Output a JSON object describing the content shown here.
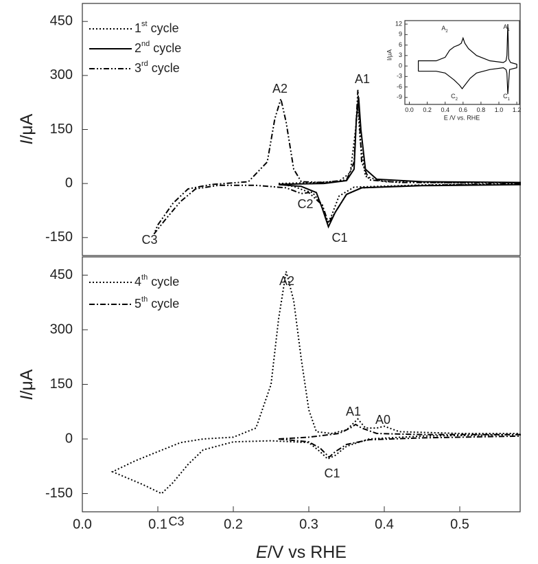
{
  "chart_data": [
    {
      "type": "line",
      "xlim": [
        0,
        0.58
      ],
      "ylim": [
        -200,
        500
      ],
      "yticks": [
        -150,
        0,
        150,
        300,
        450
      ],
      "ylabel": "I/μA",
      "legend": "upper left",
      "annotations": [
        "A2",
        "A1",
        "C2",
        "C1",
        "C3"
      ],
      "series": [
        {
          "name": "1st cycle",
          "color": "#000000",
          "style": "dotted",
          "x": [
            0.26,
            0.3,
            0.34,
            0.355,
            0.362,
            0.365,
            0.368,
            0.375,
            0.4,
            0.48,
            0.58,
            0.58,
            0.45,
            0.36,
            0.34,
            0.33,
            0.325,
            0.318,
            0.305,
            0.295,
            0.28,
            0.26
          ],
          "values": [
            0,
            2,
            6,
            30,
            150,
            220,
            120,
            20,
            5,
            2,
            2,
            -2,
            -4,
            -10,
            -35,
            -90,
            -110,
            -60,
            -25,
            -20,
            -8,
            -2
          ]
        },
        {
          "name": "2nd cycle",
          "color": "#000000",
          "style": "solid",
          "x": [
            0.26,
            0.32,
            0.35,
            0.36,
            0.363,
            0.366,
            0.369,
            0.375,
            0.39,
            0.45,
            0.58,
            0.58,
            0.45,
            0.37,
            0.35,
            0.335,
            0.326,
            0.318,
            0.31,
            0.29,
            0.26
          ],
          "values": [
            -2,
            0,
            8,
            40,
            180,
            240,
            150,
            40,
            12,
            5,
            3,
            -3,
            -6,
            -12,
            -30,
            -80,
            -120,
            -70,
            -25,
            -8,
            -3
          ]
        },
        {
          "name": "3rd cycle",
          "color": "#000000",
          "style": "dashdotdot",
          "x": [
            0.58,
            0.45,
            0.37,
            0.35,
            0.335,
            0.326,
            0.318,
            0.3,
            0.29,
            0.27,
            0.23,
            0.18,
            0.15,
            0.13,
            0.11,
            0.095,
            0.1,
            0.12,
            0.14,
            0.17,
            0.22,
            0.245,
            0.255,
            0.263,
            0.27,
            0.28,
            0.29,
            0.32,
            0.35,
            0.36,
            0.365,
            0.37,
            0.38,
            0.42,
            0.58
          ],
          "values": [
            0,
            -5,
            -12,
            -30,
            -80,
            -110,
            -60,
            -25,
            -28,
            -12,
            -5,
            -5,
            -15,
            -50,
            -100,
            -140,
            -115,
            -55,
            -15,
            -3,
            5,
            60,
            180,
            235,
            170,
            40,
            5,
            3,
            10,
            60,
            260,
            60,
            10,
            3,
            2
          ]
        }
      ]
    },
    {
      "type": "line",
      "xlim": [
        0,
        0.58
      ],
      "ylim": [
        -200,
        500
      ],
      "yticks": [
        -150,
        0,
        150,
        300,
        450
      ],
      "xticks": [
        {
          "value": 0,
          "label": "0.0"
        },
        0.1,
        0.2,
        0.3,
        0.4,
        0.5
      ],
      "ylabel": "I/μA",
      "xlabel": "E/V vs RHE",
      "legend": "upper left",
      "annotations": [
        "A2",
        "A1",
        "A0",
        "C1",
        "C3"
      ],
      "series": [
        {
          "name": "4th cycle",
          "color": "#000000",
          "style": "dotted",
          "x": [
            0.58,
            0.45,
            0.38,
            0.35,
            0.335,
            0.325,
            0.315,
            0.3,
            0.25,
            0.2,
            0.16,
            0.14,
            0.12,
            0.105,
            0.08,
            0.04,
            0.07,
            0.1,
            0.13,
            0.16,
            0.2,
            0.23,
            0.25,
            0.26,
            0.27,
            0.28,
            0.29,
            0.3,
            0.31,
            0.33,
            0.35,
            0.365,
            0.375,
            0.39,
            0.4,
            0.42,
            0.5,
            0.58
          ],
          "values": [
            12,
            8,
            0,
            -20,
            -45,
            -55,
            -35,
            -10,
            -5,
            -8,
            -30,
            -70,
            -120,
            -150,
            -125,
            -90,
            -60,
            -35,
            -10,
            0,
            5,
            30,
            150,
            330,
            460,
            380,
            220,
            80,
            20,
            15,
            25,
            55,
            30,
            30,
            35,
            20,
            15,
            15
          ]
        },
        {
          "name": "5th cycle",
          "color": "#000000",
          "style": "dashdot",
          "x": [
            0.26,
            0.3,
            0.34,
            0.355,
            0.362,
            0.37,
            0.39,
            0.45,
            0.58,
            0.58,
            0.45,
            0.38,
            0.35,
            0.335,
            0.327,
            0.315,
            0.3,
            0.26
          ],
          "values": [
            0,
            5,
            15,
            30,
            40,
            30,
            15,
            12,
            12,
            8,
            3,
            -2,
            -15,
            -35,
            -50,
            -25,
            -8,
            0
          ]
        }
      ]
    },
    {
      "type": "line",
      "xlim": [
        -0.05,
        1.23
      ],
      "ylim": [
        -11,
        13
      ],
      "yticks": [
        -9,
        -6,
        -3,
        0,
        3,
        6,
        9,
        12
      ],
      "xticks": [
        {
          "value": 0,
          "label": "0.0"
        },
        0.2,
        0.4,
        0.6,
        0.8,
        {
          "value": 1,
          "label": "1.0"
        },
        1.2
      ],
      "ylabel": "I/μA",
      "xlabel": "E /V vs. RHE",
      "annotations": [
        "A2",
        "A1",
        "C2",
        "C1"
      ],
      "series": [
        {
          "color": "#000000",
          "style": "solid",
          "x": [
            0.1,
            0.1,
            0.3,
            0.4,
            0.45,
            0.5,
            0.55,
            0.58,
            0.6,
            0.62,
            0.66,
            0.75,
            0.9,
            1.05,
            1.08,
            1.09,
            1.1,
            1.11,
            1.13,
            1.2,
            1.2,
            1.12,
            1.1,
            1.09,
            1.08,
            1.05,
            0.9,
            0.75,
            0.68,
            0.62,
            0.59,
            0.56,
            0.5,
            0.45,
            0.4,
            0.3,
            0.1
          ],
          "values": [
            -1.5,
            1.5,
            1.5,
            2.5,
            4.5,
            5.5,
            6,
            6.5,
            8,
            6.5,
            5,
            3,
            1.5,
            1,
            1.5,
            3,
            12,
            2,
            1,
            0.5,
            -0.5,
            -1,
            -8,
            -2,
            -1,
            -0.5,
            -1,
            -2,
            -3.5,
            -5.5,
            -6.5,
            -5.5,
            -4,
            -3,
            -2,
            -1.5,
            -1.5
          ]
        }
      ]
    }
  ]
}
